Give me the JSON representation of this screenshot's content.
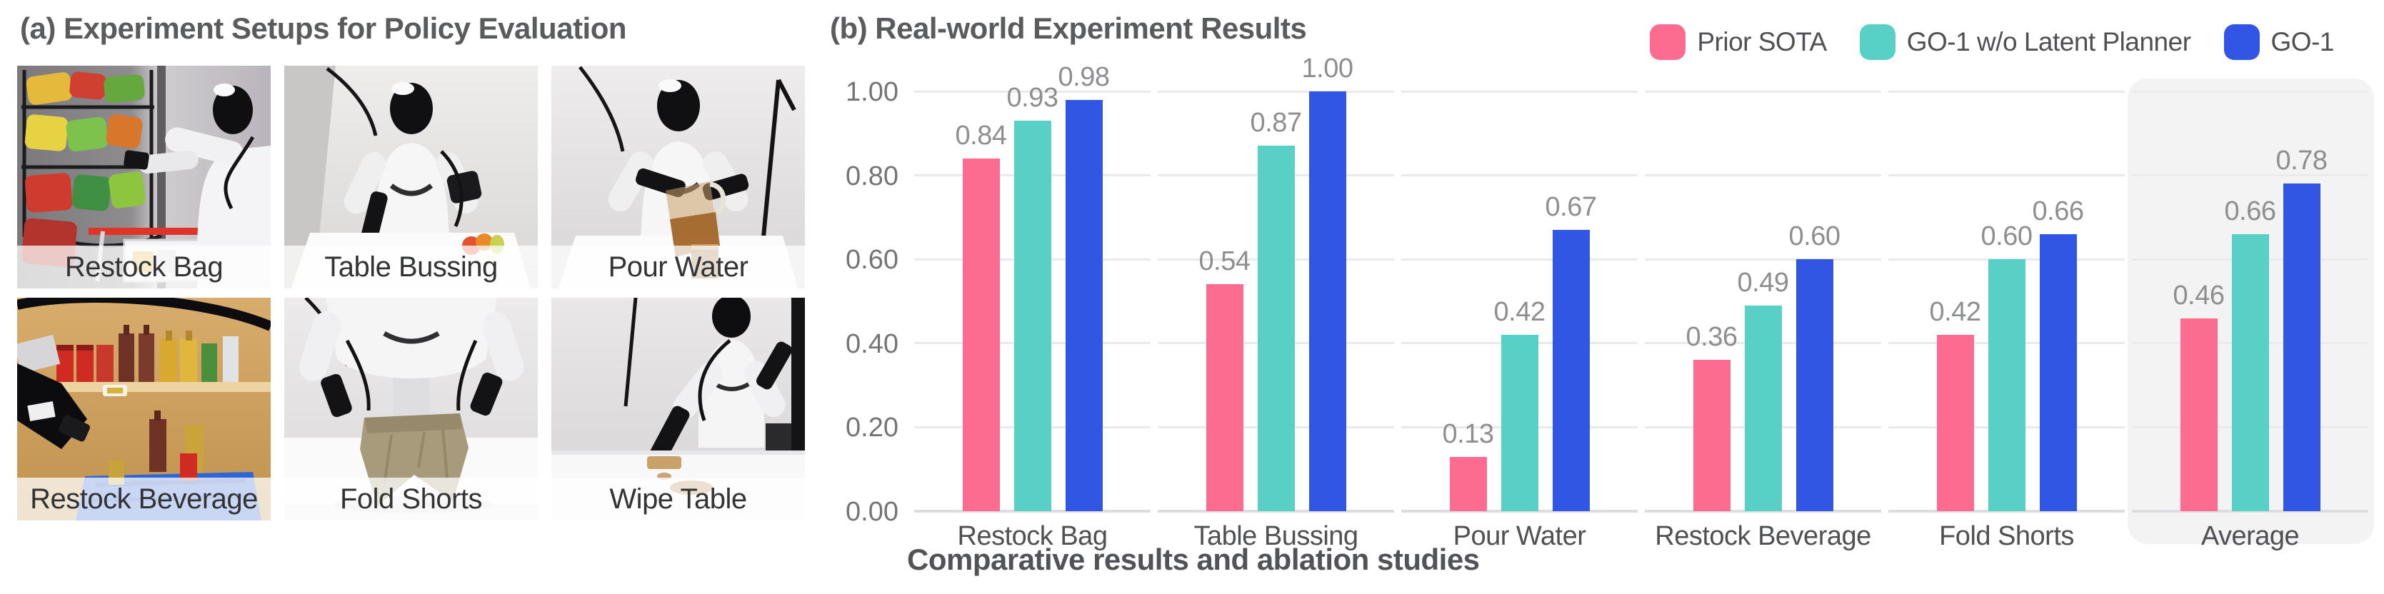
{
  "panel_a": {
    "title": "(a) Experiment Setups for Policy Evaluation",
    "tiles": [
      {
        "label": "Restock Bag"
      },
      {
        "label": "Table Bussing"
      },
      {
        "label": "Pour Water"
      },
      {
        "label": "Restock Beverage"
      },
      {
        "label": "Fold Shorts"
      },
      {
        "label": "Wipe Table"
      }
    ]
  },
  "panel_b": {
    "title": "(b) Real-world Experiment Results",
    "caption": "Comparative results and ablation studies"
  },
  "chart_data": {
    "type": "bar",
    "title": "(b) Real-world Experiment Results",
    "categories": [
      "Restock Bag",
      "Table Bussing",
      "Pour Water",
      "Restock Beverage",
      "Fold Shorts",
      "Average"
    ],
    "series": [
      {
        "name": "Prior SOTA",
        "color": "#fb6c90",
        "values": [
          0.84,
          0.54,
          0.13,
          0.36,
          0.42,
          0.46
        ]
      },
      {
        "name": "GO-1 w/o Latent Planner",
        "color": "#58d0c5",
        "values": [
          0.93,
          0.87,
          0.42,
          0.49,
          0.6,
          0.66
        ]
      },
      {
        "name": "GO-1",
        "color": "#3056e3",
        "values": [
          0.98,
          1.0,
          0.67,
          0.6,
          0.66,
          0.78
        ]
      }
    ],
    "ylim": [
      0,
      1.0
    ],
    "ytick_labels": [
      "0.00",
      "0.20",
      "0.40",
      "0.60",
      "0.80",
      "1.00"
    ],
    "grid": true,
    "legend_position": "top-right",
    "highlight_category": "Average",
    "value_labels": true,
    "xlabel": "",
    "ylabel": "",
    "caption": "Comparative results and ablation studies"
  },
  "colors": {
    "prior_sota": "#fb6c90",
    "go1_wo_latent_planner": "#58d0c5",
    "go1": "#3056e3",
    "gridline": "#eaeaec",
    "baseline": "#dddde0",
    "average_highlight_bg": "#f3f3f4",
    "title_text": "#5a5b5d",
    "value_label_text": "#8d8e90"
  }
}
